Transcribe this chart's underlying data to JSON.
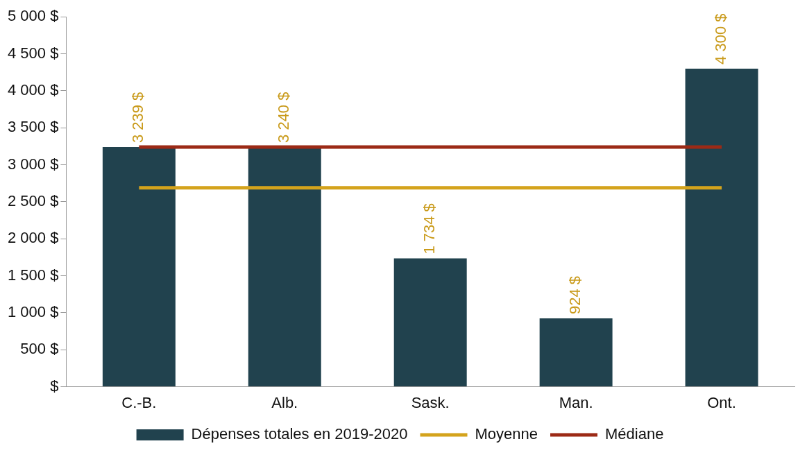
{
  "chart_data": {
    "type": "bar",
    "categories": [
      "C.-B.",
      "Alb.",
      "Sask.",
      "Man.",
      "Ont."
    ],
    "series": [
      {
        "name": "Dépenses totales en 2019-2020",
        "color": "#21424e",
        "values": [
          3239,
          3240,
          1734,
          924,
          4300
        ],
        "value_labels": [
          "3 239 $",
          "3 240 $",
          "1 734 $",
          "924 $",
          "4 300 $"
        ]
      },
      {
        "name": "Moyenne",
        "type": "line",
        "color": "#d4a31c",
        "values": [
          2690,
          2690,
          2690,
          2690,
          2690
        ]
      },
      {
        "name": "Médiane",
        "type": "line",
        "color": "#9c2a16",
        "values": [
          3240,
          3240,
          3240,
          3240,
          3240
        ]
      }
    ],
    "ylim": [
      0,
      5000
    ],
    "yticks": [
      {
        "value": 0,
        "label": "$"
      },
      {
        "value": 500,
        "label": "500 $"
      },
      {
        "value": 1000,
        "label": "1 000 $"
      },
      {
        "value": 1500,
        "label": "1 500 $"
      },
      {
        "value": 2000,
        "label": "2 000 $"
      },
      {
        "value": 2500,
        "label": "2 500 $"
      },
      {
        "value": 3000,
        "label": "3 000 $"
      },
      {
        "value": 3500,
        "label": "3 500 $"
      },
      {
        "value": 4000,
        "label": "4 000 $"
      },
      {
        "value": 4500,
        "label": "4 500 $"
      },
      {
        "value": 5000,
        "label": "5 000 $"
      }
    ],
    "grid": false,
    "legend": "bottom",
    "marker": "none"
  }
}
